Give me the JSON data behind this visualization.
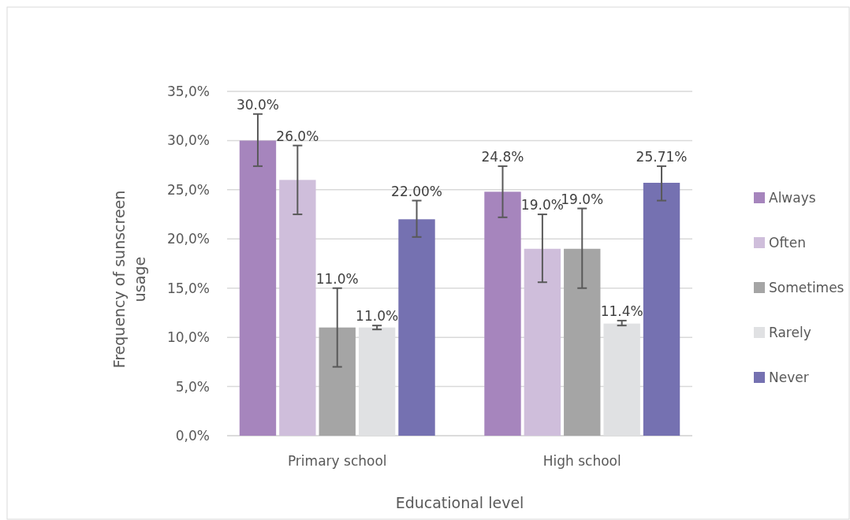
{
  "chart_data": {
    "type": "bar",
    "xlabel": "Educational level",
    "ylabel": "Frequency of sunscreen usage",
    "categories": [
      "Primary school",
      "High school"
    ],
    "series": [
      {
        "name": "Always",
        "color": "#a685bd",
        "values": [
          30.0,
          24.8
        ],
        "value_labels": [
          "30.0%",
          "24.8%"
        ],
        "errors": [
          [
            27.4,
            32.7
          ],
          [
            22.2,
            27.4
          ]
        ]
      },
      {
        "name": "Often",
        "color": "#cfbedb",
        "values": [
          26.0,
          19.0
        ],
        "value_labels": [
          "26.0%",
          "19.0%"
        ],
        "errors": [
          [
            22.5,
            29.5
          ],
          [
            15.6,
            22.5
          ]
        ]
      },
      {
        "name": "Sometimes",
        "color": "#a5a5a5",
        "values": [
          11.0,
          19.0
        ],
        "value_labels": [
          "11.0%",
          "19.0%"
        ],
        "errors": [
          [
            7.0,
            15.0
          ],
          [
            15.0,
            23.1
          ]
        ]
      },
      {
        "name": "Rarely",
        "color": "#e0e1e3",
        "values": [
          11.0,
          11.4
        ],
        "value_labels": [
          "11.0%",
          "11.4%"
        ],
        "errors": [
          [
            10.8,
            11.2
          ],
          [
            11.2,
            11.7
          ]
        ]
      },
      {
        "name": "Never",
        "color": "#7571b1",
        "values": [
          22.0,
          25.71
        ],
        "value_labels": [
          "22.00%",
          "25.71%"
        ],
        "errors": [
          [
            20.2,
            23.9
          ],
          [
            23.9,
            27.4
          ]
        ]
      }
    ],
    "ylim": [
      0,
      35
    ],
    "yticks": [
      {
        "value": 0,
        "label": "0,0%"
      },
      {
        "value": 5,
        "label": "5,0%"
      },
      {
        "value": 10,
        "label": "10,0%"
      },
      {
        "value": 15,
        "label": "15,0%"
      },
      {
        "value": 20,
        "label": "20,0%"
      },
      {
        "value": 25,
        "label": "25,0%"
      },
      {
        "value": 30,
        "label": "30,0%"
      },
      {
        "value": 35,
        "label": "35,0%"
      }
    ],
    "grid": "y",
    "legend": "right"
  }
}
